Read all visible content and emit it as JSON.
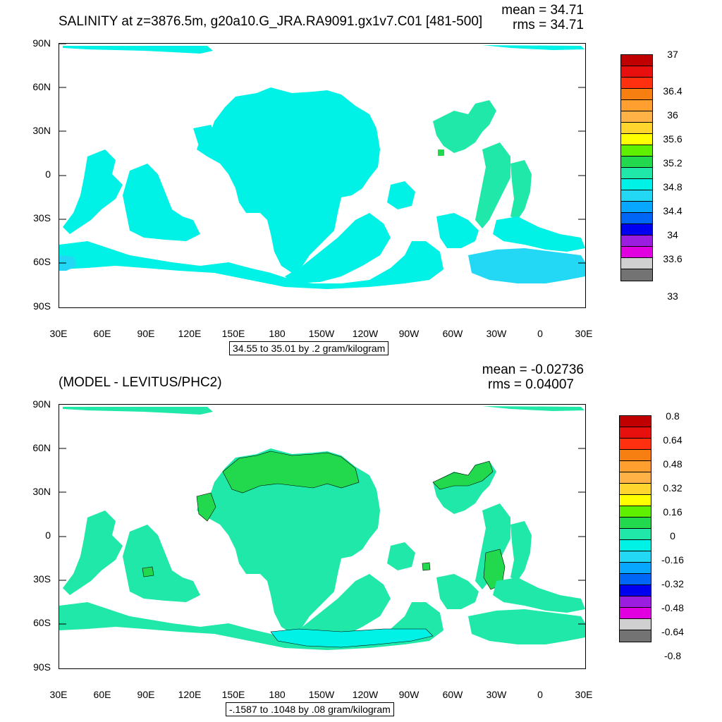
{
  "top": {
    "title": "SALINITY at z=3876.5m, g20a10.G_JRA.RA9091.gx1v7.C01 [481-500]",
    "mean": "mean = 34.71",
    "rms": "rms = 34.71",
    "info": "34.55 to 35.01 by .2 gram/kilogram",
    "colorbar_labels": [
      "37",
      "36.4",
      "36",
      "35.6",
      "35.2",
      "34.8",
      "34.4",
      "34",
      "33.6",
      "33"
    ]
  },
  "bottom": {
    "title": "(MODEL - LEVITUS/PHC2)",
    "mean": "mean = -0.02736",
    "rms": "rms = 0.04007",
    "info": "-.1587 to .1048 by .08 gram/kilogram",
    "colorbar_labels": [
      "0.8",
      "0.64",
      "0.48",
      "0.32",
      "0.16",
      "0",
      "-0.16",
      "-0.32",
      "-0.48",
      "-0.64",
      "-0.8"
    ]
  },
  "axes": {
    "lat_labels": [
      "90N",
      "60N",
      "30N",
      "0",
      "30S",
      "60S",
      "90S"
    ],
    "lon_labels": [
      "30E",
      "60E",
      "90E",
      "120E",
      "150E",
      "180",
      "150W",
      "120W",
      "90W",
      "60W",
      "30W",
      "0",
      "30E"
    ]
  },
  "colors": {
    "colorbar_top": [
      "#c00000",
      "#e8100e",
      "#ff3010",
      "#f77f12",
      "#ff9f30",
      "#ffb347",
      "#ffd52e",
      "#ffff00",
      "#5ff000",
      "#22d84c",
      "#20e8a8",
      "#00f2e6",
      "#22d8f5",
      "#07a6ff",
      "#0066f5",
      "#0000f0",
      "#9b1de0",
      "#e000e0",
      "#d0d0d0",
      "#737373"
    ],
    "colorbar_bottom": [
      "#c00000",
      "#e8100e",
      "#ff3010",
      "#f77f12",
      "#ff9f30",
      "#ffb347",
      "#ffd52e",
      "#ffff00",
      "#5ff000",
      "#22d84c",
      "#20e8a8",
      "#00f2e6",
      "#22d8f5",
      "#07a6ff",
      "#0066f5",
      "#0000f0",
      "#9b1de0",
      "#e000e0",
      "#d0d0d0",
      "#737373"
    ],
    "ocean_top_main": "#00f2e6",
    "ocean_top_deep": "#22d8f5",
    "ocean_top_green": "#20e8a8",
    "ocean_bottom_main": "#20e8a8",
    "ocean_bottom_cyan": "#00f2e6",
    "ocean_bottom_green": "#22d84c"
  }
}
